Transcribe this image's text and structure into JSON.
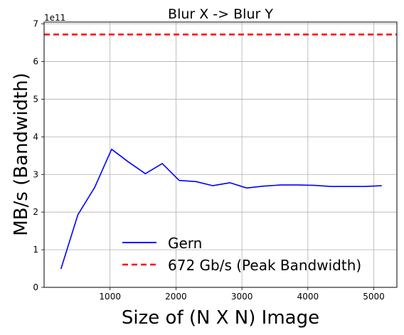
{
  "chart_data": {
    "type": "line",
    "title": "Blur X -> Blur Y",
    "xlabel": "Size of (N X N) Image",
    "ylabel": "MB/s (Bandwidth)",
    "y_offset_label": "1e11",
    "xlim": [
      0,
      5350
    ],
    "ylim": [
      0,
      7.05
    ],
    "y_scale_note": "values in units of 1e11",
    "x_ticks": [
      1000,
      2000,
      3000,
      4000,
      5000
    ],
    "y_ticks": [
      0,
      1,
      2,
      3,
      4,
      5,
      6,
      7
    ],
    "grid": true,
    "legend_position": "lower-center",
    "series": [
      {
        "name": "Gern",
        "color": "#0000ff",
        "style": "solid",
        "x": [
          256,
          512,
          768,
          1024,
          1280,
          1536,
          1792,
          2048,
          2304,
          2560,
          2816,
          3072,
          3328,
          3584,
          3840,
          4096,
          4352,
          4608,
          4864,
          5120
        ],
        "y": [
          0.49,
          1.93,
          2.66,
          3.67,
          3.33,
          3.02,
          3.29,
          2.84,
          2.81,
          2.7,
          2.78,
          2.64,
          2.69,
          2.72,
          2.72,
          2.71,
          2.68,
          2.68,
          2.68,
          2.7
        ]
      },
      {
        "name": "672 Gb/s (Peak Bandwidth)",
        "color": "#ff0000",
        "style": "dashed",
        "hline": 6.72
      }
    ]
  }
}
